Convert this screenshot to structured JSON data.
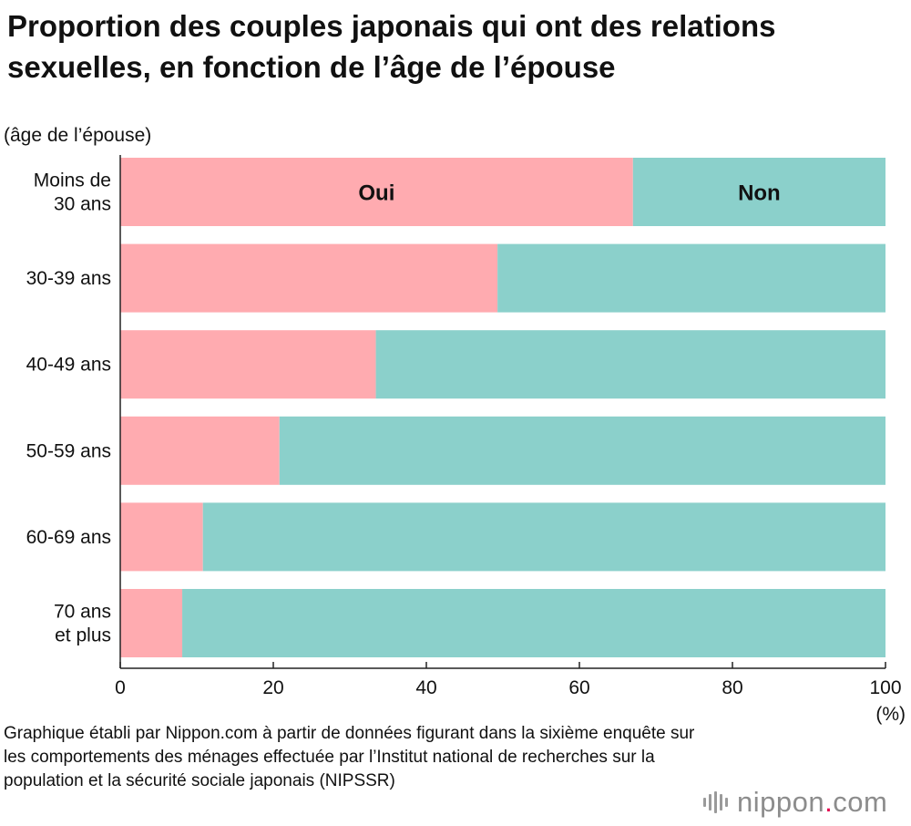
{
  "chart_data": {
    "type": "bar",
    "orientation": "horizontal",
    "stacked": true,
    "title": "Proportion des couples japonais qui ont des relations sexuelles, en fonction de l’âge de l’épouse",
    "ylabel": "(âge de l’épouse)",
    "xlabel": "(%)",
    "xlim": [
      0,
      100
    ],
    "xticks": [
      "0",
      "20",
      "40",
      "60",
      "80",
      "100"
    ],
    "categories": [
      [
        "Moins de",
        "30 ans"
      ],
      [
        "30-39 ans"
      ],
      [
        "40-49 ans"
      ],
      [
        "50-59 ans"
      ],
      [
        "60-69 ans"
      ],
      [
        "70 ans",
        "et plus"
      ]
    ],
    "series": [
      {
        "name": "Oui",
        "color": "#ffabb0",
        "values": [
          67,
          49.3,
          33.4,
          20.8,
          10.8,
          8.1
        ]
      },
      {
        "name": "Non",
        "color": "#8bd0cb",
        "values": [
          33,
          50.7,
          66.6,
          79.2,
          89.2,
          91.9
        ]
      }
    ],
    "grid": false,
    "legend": "inside-first-bar"
  },
  "source": {
    "text": "Graphique établi par Nippon.com à partir de données figurant dans la sixième enquête sur les comportements des ménages effectuée par l’Institut national de recherches sur la population et la sécurité sociale japonais (NIPSSR)"
  },
  "brand": {
    "name": "nippon",
    "dot": ".",
    "suffix": "com"
  }
}
